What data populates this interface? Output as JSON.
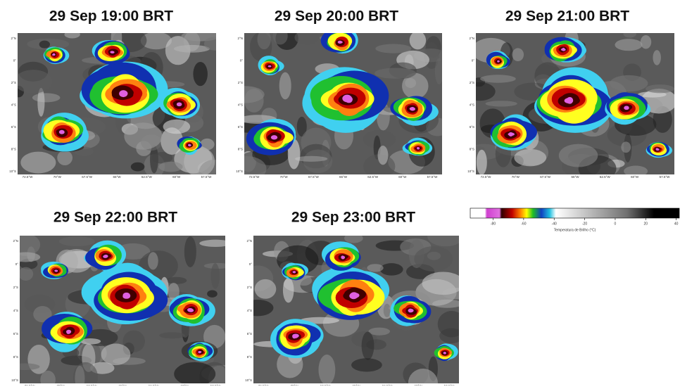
{
  "panels": [
    {
      "title": "29 Sep 19:00 BRT"
    },
    {
      "title": "29 Sep 20:00 BRT"
    },
    {
      "title": "29 Sep 21:00 BRT"
    },
    {
      "title": "29 Sep 22:00 BRT"
    },
    {
      "title": "29 Sep 23:00 BRT"
    }
  ],
  "axes": {
    "lat_labels": [
      "2°N",
      "0°",
      "2°S",
      "4°S",
      "6°S",
      "8°S",
      "10°S"
    ],
    "lon_labels": [
      "72.5°W",
      "70°W",
      "67.5°W",
      "65°W",
      "62.5°W",
      "60°W",
      "57.5°W"
    ]
  },
  "colorbar": {
    "label": "Temperatura de Brilho (°C)",
    "xlim": [
      -95,
      42
    ],
    "xticks": [
      -80,
      -60,
      -40,
      -20,
      0,
      20,
      40
    ]
  }
}
